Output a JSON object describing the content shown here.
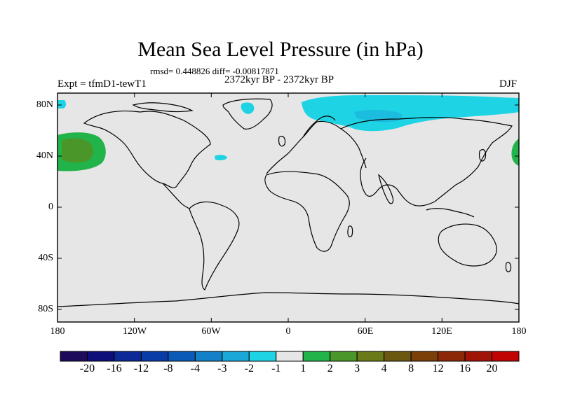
{
  "title": "Mean Sea Level Pressure (in hPa)",
  "stats": "rmsd= 0.448826 diff= -0.00817871",
  "experiment": "Expt = tfmD1-tewT1",
  "period": "2372kyr BP - 2372kyr BP",
  "season": "DJF",
  "lat_labels": [
    "80N",
    "40N",
    "0",
    "40S",
    "80S"
  ],
  "lon_labels": [
    "180",
    "120W",
    "60W",
    "0",
    "60E",
    "120E",
    "180"
  ],
  "colorbar": {
    "labels": [
      "-20",
      "-16",
      "-12",
      "-8",
      "-4",
      "-3",
      "-2",
      "-1",
      "1",
      "2",
      "3",
      "4",
      "8",
      "12",
      "16",
      "20"
    ],
    "colors": [
      "#1e0a5a",
      "#0e0e7a",
      "#0c2a96",
      "#0a3ca8",
      "#0b5ab8",
      "#1480c8",
      "#1aa8d8",
      "#1ed4e4",
      "#e6e6e6",
      "#22b44a",
      "#4a9628",
      "#6a7a18",
      "#6a5810",
      "#7a4008",
      "#8c2808",
      "#a01408",
      "#c00404"
    ]
  },
  "map_colors": {
    "ocean_land_background": "#e6e6e6",
    "negative_anomaly_light": "#1ed4e4",
    "negative_anomaly_mid": "#1aa8d8",
    "positive_anomaly_light": "#22b44a",
    "positive_anomaly_mid": "#4a9628"
  }
}
